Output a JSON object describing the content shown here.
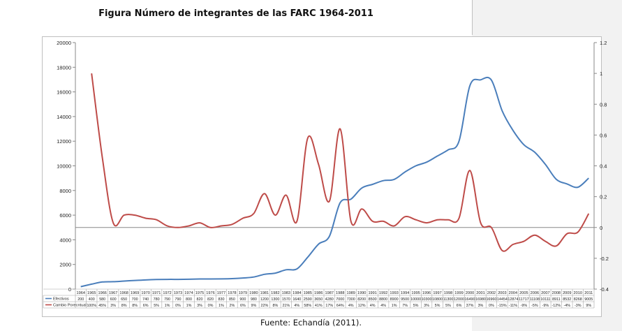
{
  "page": {
    "title": "Figura Número de integrantes de las FARC 1964-2011",
    "source": "Fuente: Echandía (2011)."
  },
  "chart_data": {
    "type": "line",
    "title": "Figura Número de integrantes de las FARC 1964-2011",
    "x": [
      "1964",
      "1965",
      "1966",
      "1967",
      "1968",
      "1969",
      "1970",
      "1971",
      "1972",
      "1973",
      "1974",
      "1975",
      "1976",
      "1977",
      "1978",
      "1979",
      "1980",
      "1981",
      "1982",
      "1983",
      "1984",
      "1985",
      "1986",
      "1987",
      "1988",
      "1989",
      "1990",
      "1991",
      "1992",
      "1993",
      "1994",
      "1995",
      "1996",
      "1997",
      "1998",
      "1999",
      "2000",
      "2001",
      "2002",
      "2003",
      "2004",
      "2005",
      "2006",
      "2007",
      "2008",
      "2009",
      "2010",
      "2011"
    ],
    "y_left": {
      "min": 0,
      "max": 20000,
      "step": 2000
    },
    "y_right": {
      "min": -0.4,
      "max": 1.2,
      "step": 0.2
    },
    "grid": false,
    "legend": "bottom-left (data table)",
    "series": [
      {
        "name": "Efectivos",
        "axis": "left",
        "color": "#4a7ebb",
        "values": [
          200,
          400,
          580,
          600,
          650,
          700,
          740,
          780,
          790,
          790,
          800,
          820,
          820,
          830,
          850,
          900,
          980,
          1200,
          1300,
          1570,
          1640,
          2590,
          3650,
          4280,
          7000,
          7300,
          8200,
          8500,
          8800,
          8900,
          9500,
          10000,
          10300,
          10800,
          11300,
          12000,
          16490,
          16980,
          16960,
          14454,
          12874,
          11717,
          11108,
          10111,
          8911,
          8532,
          8268,
          9005
        ],
        "labels": [
          "200",
          "400",
          "580",
          "600",
          "650",
          "700",
          "740",
          "780",
          "790",
          "790",
          "800",
          "820",
          "820",
          "830",
          "850",
          "900",
          "980",
          "1200",
          "1300",
          "1570",
          "1640",
          "2590",
          "3650",
          "4280",
          "7000",
          "7300",
          "8200",
          "8500",
          "8800",
          "8900",
          "9500",
          "10000",
          "10300",
          "10800",
          "11300",
          "12000",
          "16490",
          "16980",
          "16960",
          "14454",
          "12874",
          "11717",
          "11108",
          "10111",
          "8911",
          "8532",
          "8268",
          "9005"
        ]
      },
      {
        "name": "Cambio Porecntual",
        "axis": "right",
        "color": "#be4b48",
        "values": [
          null,
          1.0,
          0.45,
          0.03,
          0.08,
          0.08,
          0.06,
          0.05,
          0.01,
          0.0,
          0.01,
          0.03,
          0.0,
          0.01,
          0.02,
          0.06,
          0.09,
          0.22,
          0.08,
          0.21,
          0.04,
          0.58,
          0.41,
          0.17,
          0.64,
          0.04,
          0.12,
          0.04,
          0.04,
          0.01,
          0.07,
          0.05,
          0.03,
          0.05,
          0.05,
          0.06,
          0.37,
          0.03,
          0.0,
          -0.15,
          -0.11,
          -0.09,
          -0.05,
          -0.09,
          -0.12,
          -0.04,
          -0.03,
          0.09
        ],
        "labels": [
          "",
          "100%",
          "45%",
          "3%",
          "8%",
          "8%",
          "6%",
          "5%",
          "1%",
          "0%",
          "1%",
          "3%",
          "0%",
          "1%",
          "2%",
          "6%",
          "9%",
          "22%",
          "8%",
          "21%",
          "4%",
          "58%",
          "41%",
          "17%",
          "64%",
          "4%",
          "12%",
          "4%",
          "4%",
          "1%",
          "7%",
          "5%",
          "3%",
          "5%",
          "5%",
          "6%",
          "37%",
          "3%",
          "0%",
          "-15%",
          "-11%",
          "-9%",
          "-5%",
          "-9%",
          "-12%",
          "-4%",
          "-3%",
          "9%"
        ]
      }
    ],
    "y_left_ticks": [
      "0",
      "2000",
      "4000",
      "6000",
      "8000",
      "10000",
      "12000",
      "14000",
      "16000",
      "18000",
      "20000"
    ],
    "y_right_ticks": [
      "-0.4",
      "-0.2",
      "0",
      "0.2",
      "0.4",
      "0.6",
      "0.8",
      "1",
      "1.2"
    ]
  }
}
